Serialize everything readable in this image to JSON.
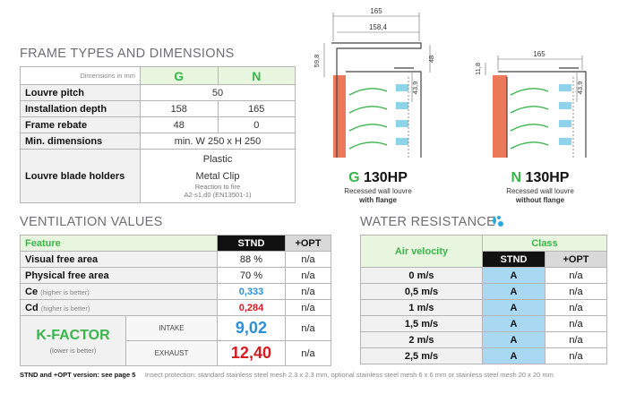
{
  "frame": {
    "title": "FRAME TYPES AND DIMENSIONS",
    "dim_note": "Dimensions in mm",
    "col_g": "G",
    "col_n": "N",
    "rows": {
      "pitch_label": "Louvre pitch",
      "pitch_val": "50",
      "depth_label": "Installation depth",
      "depth_g": "158",
      "depth_n": "165",
      "rebate_label": "Frame rebate",
      "rebate_g": "48",
      "rebate_n": "0",
      "mindim_label": "Min. dimensions",
      "mindim_val": "min. W 250 x H 250",
      "holders_label": "Louvre blade holders",
      "holders_1": "Plastic",
      "holders_2": "Metal Clip",
      "holders_note1": "Reaction to fire",
      "holders_note2": "A2-s1,d0 (EN13501-1)"
    }
  },
  "drawings": {
    "g": {
      "dims": [
        "165",
        "158,4",
        "59,8",
        "48",
        "43,9"
      ],
      "letter": "G",
      "model": " 130HP",
      "desc1": "Recessed wall louvre",
      "desc2": "with flange"
    },
    "n": {
      "dims": [
        "165",
        "11,8",
        "43,9"
      ],
      "letter": "N",
      "model": " 130HP",
      "desc1": "Recessed wall louvre",
      "desc2": "without flange"
    }
  },
  "ventilation": {
    "title": "VENTILATION VALUES",
    "hdr_feature": "Feature",
    "hdr_stnd": "STND",
    "hdr_opt": "+OPT",
    "visual_label": "Visual free area",
    "visual_stnd": "88 %",
    "visual_opt": "n/a",
    "physical_label": "Physical free area",
    "physical_stnd": "70 %",
    "physical_opt": "n/a",
    "ce_label": "Ce",
    "ce_note": "(higher is better)",
    "ce_stnd": "0,333",
    "ce_opt": "n/a",
    "cd_label": "Cd",
    "cd_note": "(higher is better)",
    "cd_stnd": "0,284",
    "cd_opt": "n/a",
    "kfactor": "K-FACTOR",
    "kfactor_note": "(lower is better)",
    "intake_label": "INTAKE",
    "intake_val": "9,02",
    "intake_opt": "n/a",
    "exhaust_label": "EXHAUST",
    "exhaust_val": "12,40",
    "exhaust_opt": "n/a"
  },
  "water": {
    "title": "WATER RESISTANCE",
    "hdr_air": "Air velocity",
    "hdr_class": "Class",
    "hdr_stnd": "STND",
    "hdr_opt": "+OPT",
    "rows": [
      {
        "vel": "0 m/s",
        "cls": "A",
        "opt": "n/a"
      },
      {
        "vel": "0,5 m/s",
        "cls": "A",
        "opt": "n/a"
      },
      {
        "vel": "1 m/s",
        "cls": "A",
        "opt": "n/a"
      },
      {
        "vel": "1,5 m/s",
        "cls": "A",
        "opt": "n/a"
      },
      {
        "vel": "2 m/s",
        "cls": "A",
        "opt": "n/a"
      },
      {
        "vel": "2,5 m/s",
        "cls": "A",
        "opt": "n/a"
      }
    ]
  },
  "footnote": {
    "bold": "STND and +OPT version: see page 5",
    "text": "Insect protection: standard stainless steel mesh 2.3 x 2.3 mm, optional stainless steel mesh 6 x 6 mm or stainless steel mesh 20 x 20 mm"
  }
}
